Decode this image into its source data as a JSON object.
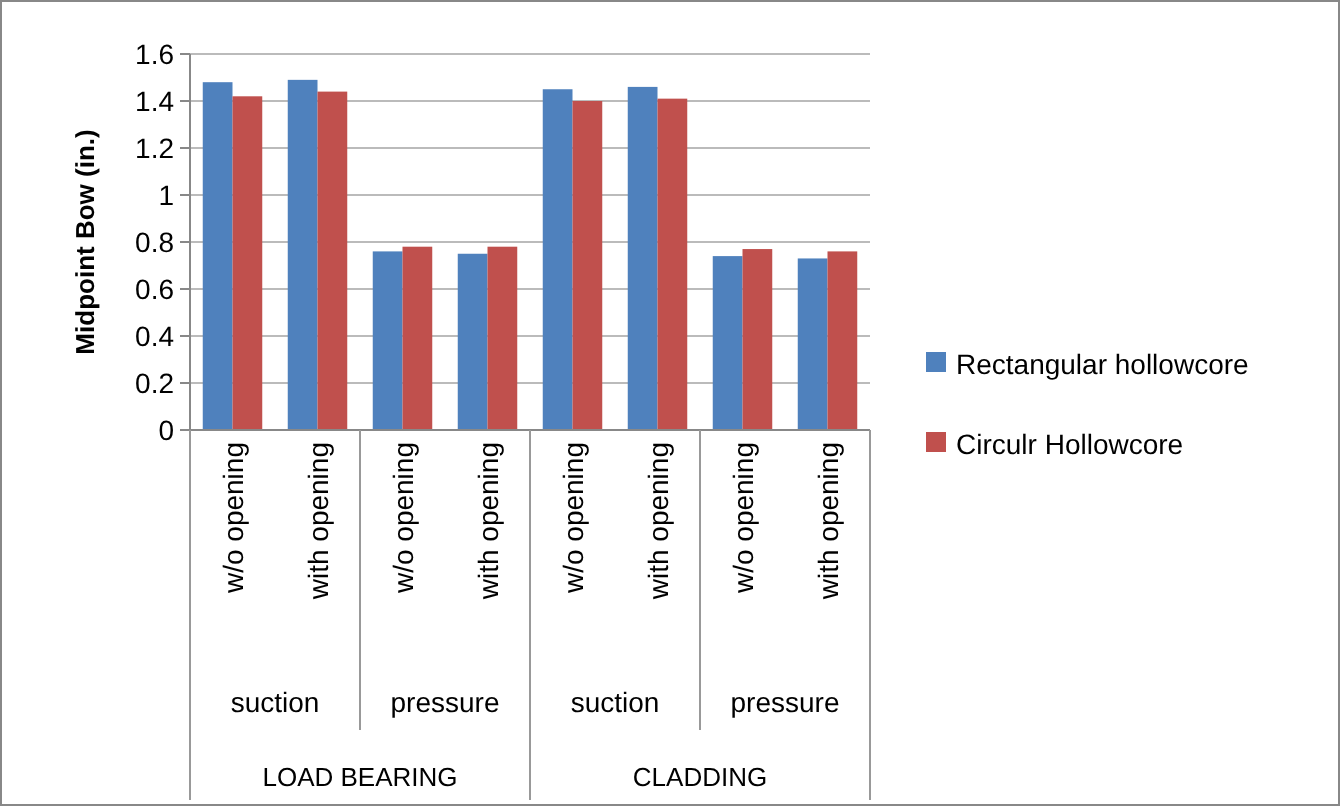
{
  "chart_data": {
    "type": "bar",
    "ylabel": "Midpoint Bow (in.)",
    "categories": [
      "w/o opening",
      "with opening",
      "w/o opening",
      "with opening",
      "w/o opening",
      "with opening",
      "w/o opening",
      "with opening"
    ],
    "series": [
      {
        "name": "Rectangular hollowcore",
        "color": "#4f81bd",
        "values": [
          1.48,
          1.49,
          0.76,
          0.75,
          1.45,
          1.46,
          0.74,
          0.73
        ]
      },
      {
        "name": "Circulr Hollowcore",
        "color": "#c0504d",
        "values": [
          1.42,
          1.44,
          0.78,
          0.78,
          1.4,
          1.41,
          0.77,
          0.76
        ]
      }
    ],
    "annotations": [
      "suction",
      "pressure",
      "suction",
      "pressure",
      "LOAD BEARING",
      "CLADDING"
    ],
    "ylim": [
      0,
      1.6
    ],
    "yticks": [
      0,
      0.2,
      0.4,
      0.6,
      0.8,
      1,
      1.2,
      1.4,
      1.6
    ],
    "grid": "y",
    "legend": "right"
  }
}
